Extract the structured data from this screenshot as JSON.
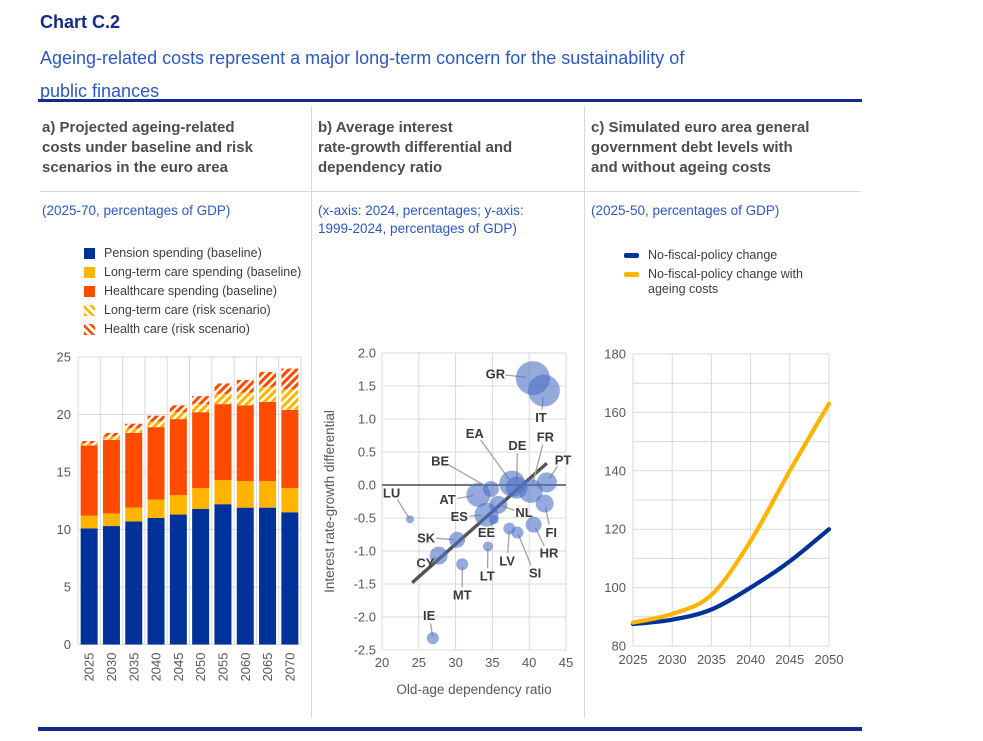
{
  "page": {
    "title": "Chart C.2",
    "subtitle": "Ageing-related costs represent a major long-term concern for the sustainability of\npublic finances"
  },
  "panels": {
    "a": {
      "heading": "a) Projected ageing-related\ncosts under baseline and risk\nscenarios in the euro area",
      "note": "(2025-70, percentages of GDP)",
      "legend": [
        {
          "label": "Pension spending (baseline)",
          "type": "square",
          "style": "solid",
          "color": "#003299"
        },
        {
          "label": "Long-term care spending (baseline)",
          "type": "square",
          "style": "solid",
          "color": "#FFB400"
        },
        {
          "label": "Healthcare spending (baseline)",
          "type": "square",
          "style": "solid",
          "color": "#FF4B00"
        },
        {
          "label": "Long-term care (risk scenario)",
          "type": "square",
          "style": "hatch",
          "color": "#FFB400"
        },
        {
          "label": "Health care (risk scenario)",
          "type": "square",
          "style": "hatch",
          "color": "#FF4B00"
        }
      ]
    },
    "b": {
      "heading": "b) Average interest\nrate-growth differential and\ndependency ratio",
      "note": "(x-axis: 2024, percentages; y-axis:\n1999-2024, percentages of GDP)"
    },
    "c": {
      "heading": "c) Simulated euro area general\ngovernment debt levels with\nand without ageing costs",
      "note": "(2025-50, percentages of GDP)",
      "legend": [
        {
          "label": "No-fiscal-policy change",
          "type": "line",
          "color": "#003299"
        },
        {
          "label": "No-fiscal-policy change with\nageing costs",
          "type": "line",
          "color": "#FFB400"
        }
      ]
    }
  },
  "chart_data": [
    {
      "panel": "a",
      "type": "bar",
      "stacked": true,
      "title": "Projected ageing-related costs under baseline and risk scenarios in the euro area",
      "unit": "percentages of GDP",
      "categories": [
        "2025",
        "2030",
        "2035",
        "2040",
        "2045",
        "2050",
        "2055",
        "2060",
        "2065",
        "2070"
      ],
      "series": [
        {
          "name": "Pension spending (baseline)",
          "style": "solid",
          "color": "#003299",
          "values": [
            10.1,
            10.3,
            10.7,
            11.0,
            11.3,
            11.8,
            12.2,
            11.9,
            11.9,
            11.5
          ]
        },
        {
          "name": "Long-term care spending (baseline)",
          "style": "solid",
          "color": "#FFB400",
          "values": [
            1.1,
            1.1,
            1.2,
            1.6,
            1.7,
            1.8,
            2.1,
            2.3,
            2.3,
            2.1
          ]
        },
        {
          "name": "Healthcare spending (baseline)",
          "style": "solid",
          "color": "#FF4B00",
          "values": [
            6.1,
            6.4,
            6.5,
            6.3,
            6.6,
            6.6,
            6.6,
            6.6,
            6.9,
            6.8
          ]
        },
        {
          "name": "Long-term care (risk scenario)",
          "style": "hatch",
          "color": "#FFB400",
          "values": [
            0.2,
            0.3,
            0.4,
            0.5,
            0.6,
            0.7,
            0.9,
            1.1,
            1.3,
            1.8
          ]
        },
        {
          "name": "Health care (risk scenario)",
          "style": "hatch",
          "color": "#FF4B00",
          "values": [
            0.2,
            0.3,
            0.4,
            0.5,
            0.6,
            0.7,
            0.9,
            1.1,
            1.3,
            1.8
          ]
        }
      ],
      "ylim": [
        0,
        25
      ],
      "yticks": [
        0,
        5,
        10,
        15,
        20,
        25
      ],
      "grid": true
    },
    {
      "panel": "b",
      "type": "scatter",
      "xlabel": "Old-age dependency ratio",
      "ylabel": "Interest rate-growth differential",
      "xlim": [
        20,
        45
      ],
      "xticks": [
        20,
        25,
        30,
        35,
        40,
        45
      ],
      "ylim": [
        -2.5,
        2.0
      ],
      "yticks": [
        2.0,
        1.5,
        1.0,
        0.5,
        0.0,
        -0.5,
        -1.0,
        -1.5,
        -2.0,
        -2.5
      ],
      "zero_line": 0,
      "trendline": {
        "x1": 24.1,
        "y1": -1.48,
        "x2": 42.4,
        "y2": 0.33
      },
      "bubble_color": "#4d6fc4",
      "points": [
        {
          "label": "LU",
          "x": 23.8,
          "y": -0.52,
          "r": 4,
          "lx": 21.3,
          "ly": -0.12
        },
        {
          "label": "IE",
          "x": 26.9,
          "y": -2.32,
          "r": 6,
          "lx": 26.4,
          "ly": -1.98
        },
        {
          "label": "CY",
          "x": 27.7,
          "y": -1.07,
          "r": 9,
          "lx": 25.9,
          "ly": -1.18
        },
        {
          "label": "SK",
          "x": 30.2,
          "y": -0.83,
          "r": 8,
          "lx": 26.0,
          "ly": -0.8
        },
        {
          "label": "MT",
          "x": 30.9,
          "y": -1.2,
          "r": 6,
          "lx": 30.9,
          "ly": -1.67
        },
        {
          "label": "AT",
          "x": 33.1,
          "y": -0.15,
          "r": 12,
          "lx": 28.9,
          "ly": -0.22
        },
        {
          "label": "BE",
          "x": 34.8,
          "y": -0.06,
          "r": 8,
          "lx": 27.9,
          "ly": 0.36
        },
        {
          "label": "ES",
          "x": 34.2,
          "y": -0.45,
          "r": 12,
          "lx": 30.5,
          "ly": -0.48
        },
        {
          "label": "EE",
          "x": 35.2,
          "y": -0.52,
          "r": 5,
          "lx": 34.2,
          "ly": -0.72
        },
        {
          "label": "NL",
          "x": 35.8,
          "y": -0.3,
          "r": 9,
          "lx": 39.3,
          "ly": -0.42
        },
        {
          "label": "LT",
          "x": 34.4,
          "y": -0.93,
          "r": 5,
          "lx": 34.3,
          "ly": -1.38
        },
        {
          "label": "EA",
          "x": 37.7,
          "y": 0.02,
          "r": 13,
          "lx": 32.6,
          "ly": 0.78
        },
        {
          "label": "DE",
          "x": 38.3,
          "y": -0.04,
          "r": 11,
          "lx": 38.4,
          "ly": 0.6
        },
        {
          "label": "LV",
          "x": 37.3,
          "y": -0.66,
          "r": 6,
          "lx": 37.0,
          "ly": -1.15
        },
        {
          "label": "SI",
          "x": 38.4,
          "y": -0.72,
          "r": 6,
          "lx": 40.8,
          "ly": -1.33
        },
        {
          "label": "FR",
          "x": 40.2,
          "y": -0.09,
          "r": 12,
          "lx": 42.2,
          "ly": 0.73
        },
        {
          "label": "HR",
          "x": 40.6,
          "y": -0.6,
          "r": 8,
          "lx": 42.7,
          "ly": -1.03
        },
        {
          "label": "GR",
          "x": 40.5,
          "y": 1.62,
          "r": 17,
          "lx": 35.4,
          "ly": 1.68
        },
        {
          "label": "IT",
          "x": 42.0,
          "y": 1.43,
          "r": 16,
          "lx": 41.6,
          "ly": 1.02
        },
        {
          "label": "FI",
          "x": 42.1,
          "y": -0.28,
          "r": 9,
          "lx": 43.0,
          "ly": -0.72
        },
        {
          "label": "PT",
          "x": 42.4,
          "y": 0.04,
          "r": 10,
          "lx": 44.6,
          "ly": 0.38
        }
      ],
      "grid": true
    },
    {
      "panel": "c",
      "type": "line",
      "x": [
        2025,
        2030,
        2035,
        2040,
        2045,
        2050
      ],
      "xticks": [
        2025,
        2030,
        2035,
        2040,
        2045,
        2050
      ],
      "series": [
        {
          "name": "No-fiscal-policy change",
          "color": "#003299",
          "values": [
            87.5,
            89,
            92.5,
            100,
            109,
            120
          ]
        },
        {
          "name": "No-fiscal-policy change with ageing costs",
          "color": "#FFB400",
          "values": [
            88,
            91,
            97.5,
            116,
            140,
            163
          ]
        }
      ],
      "ylim": [
        80,
        180
      ],
      "yticks": [
        80,
        100,
        120,
        140,
        160,
        180
      ],
      "grid_step": 10
    }
  ]
}
